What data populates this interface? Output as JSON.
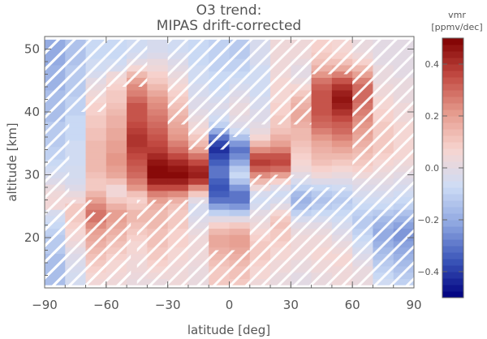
{
  "chart_data": {
    "type": "heatmap",
    "title": [
      "O3 trend:",
      "MIPAS drift-corrected"
    ],
    "xlabel": "latitude [deg]",
    "ylabel": "altitude [km]",
    "xlim": [
      -90,
      90
    ],
    "ylim": [
      12,
      52
    ],
    "x_ticks": [
      -90,
      -60,
      -30,
      0,
      30,
      60,
      90
    ],
    "y_ticks": [
      20,
      30,
      40,
      50
    ],
    "hatching": "white diagonal hatching over insignificant trend regions",
    "colorbar": {
      "title": [
        "vmr",
        "[ppmv/dec]"
      ],
      "range": [
        -0.5,
        0.5
      ],
      "ticks": [
        -0.4,
        -0.2,
        0.0,
        0.2,
        0.4
      ],
      "tick_labels": [
        "-0.4",
        "-0.2",
        "0.0",
        "0.2",
        "0.4"
      ],
      "colors": [
        "#00007f",
        "#3a55b8",
        "#8ea6e0",
        "#cddcf5",
        "#f7d5d0",
        "#e59a8c",
        "#c24a42",
        "#7f0000"
      ]
    },
    "lat_bands": [
      -85,
      -75,
      -65,
      -55,
      -45,
      -35,
      -25,
      -15,
      -5,
      5,
      15,
      25,
      35,
      45,
      55,
      65,
      75,
      85
    ],
    "alt_bands": [
      13,
      14,
      15,
      16,
      17,
      18,
      19,
      20,
      21,
      22,
      23,
      24,
      25,
      26,
      27,
      28,
      29,
      30,
      31,
      32,
      33,
      34,
      35,
      36,
      37,
      38,
      39,
      40,
      41,
      42,
      43,
      44,
      45,
      46,
      47,
      48,
      49,
      50,
      51
    ],
    "trend_by_lat": [
      [
        -0.15,
        -0.15,
        -0.15,
        -0.15,
        -0.15,
        -0.12,
        -0.12,
        -0.12,
        -0.1,
        -0.08,
        -0.06,
        -0.04,
        0.05,
        0.05,
        0.04,
        0.02,
        -0.02,
        -0.04,
        -0.06,
        -0.08,
        -0.1,
        -0.1,
        -0.12,
        -0.12,
        -0.12,
        -0.12,
        -0.15,
        -0.15,
        -0.15,
        -0.15,
        -0.15,
        -0.18,
        -0.18,
        -0.18,
        -0.18,
        -0.2,
        -0.2,
        -0.2,
        -0.2
      ],
      [
        -0.05,
        -0.05,
        -0.04,
        -0.03,
        -0.02,
        0.0,
        0.03,
        0.05,
        0.06,
        0.08,
        0.1,
        0.1,
        0.1,
        0.05,
        0.02,
        -0.02,
        -0.04,
        -0.05,
        -0.05,
        -0.06,
        -0.06,
        -0.06,
        -0.06,
        -0.08,
        -0.08,
        -0.08,
        -0.08,
        -0.1,
        -0.1,
        -0.1,
        -0.12,
        -0.12,
        -0.12,
        -0.12,
        -0.12,
        -0.14,
        -0.14,
        -0.14,
        -0.14
      ],
      [
        0.05,
        0.06,
        0.08,
        0.1,
        0.12,
        0.14,
        0.16,
        0.18,
        0.2,
        0.24,
        0.28,
        0.28,
        0.25,
        0.2,
        0.15,
        0.1,
        0.1,
        0.12,
        0.14,
        0.14,
        0.14,
        0.14,
        0.14,
        0.12,
        0.12,
        0.1,
        0.1,
        0.08,
        0.08,
        0.06,
        0.04,
        0.02,
        0.0,
        -0.04,
        -0.06,
        -0.06,
        -0.08,
        -0.08,
        -0.08
      ],
      [
        0.04,
        0.05,
        0.06,
        0.06,
        0.08,
        0.1,
        0.12,
        0.14,
        0.16,
        0.18,
        0.2,
        0.2,
        0.16,
        0.1,
        0.05,
        0.05,
        0.12,
        0.18,
        0.2,
        0.22,
        0.22,
        0.2,
        0.2,
        0.18,
        0.18,
        0.16,
        0.16,
        0.14,
        0.12,
        0.1,
        0.1,
        0.08,
        0.06,
        0.04,
        -0.04,
        -0.06,
        -0.08,
        -0.08,
        -0.08
      ],
      [
        0.02,
        0.03,
        0.04,
        0.04,
        0.05,
        0.06,
        0.06,
        0.08,
        0.1,
        0.12,
        0.14,
        0.14,
        0.1,
        0.08,
        0.12,
        0.22,
        0.26,
        0.3,
        0.32,
        0.34,
        0.36,
        0.38,
        0.4,
        0.4,
        0.38,
        0.36,
        0.34,
        0.34,
        0.34,
        0.3,
        0.26,
        0.24,
        0.2,
        0.14,
        0.06,
        0.0,
        -0.04,
        -0.06,
        -0.06
      ],
      [
        0.02,
        0.04,
        0.06,
        0.08,
        0.1,
        0.1,
        0.12,
        0.12,
        0.12,
        0.14,
        0.14,
        0.14,
        0.16,
        0.2,
        0.26,
        0.36,
        0.44,
        0.48,
        0.48,
        0.46,
        0.42,
        0.38,
        0.36,
        0.34,
        0.32,
        0.3,
        0.28,
        0.26,
        0.24,
        0.22,
        0.18,
        0.14,
        0.1,
        0.08,
        0.04,
        0.02,
        -0.02,
        -0.04,
        -0.04
      ],
      [
        0.04,
        0.04,
        0.04,
        0.05,
        0.06,
        0.06,
        0.08,
        0.08,
        0.08,
        0.1,
        0.1,
        0.1,
        0.12,
        0.16,
        0.24,
        0.36,
        0.44,
        0.48,
        0.46,
        0.42,
        0.36,
        0.3,
        0.26,
        0.22,
        0.2,
        0.18,
        0.16,
        0.14,
        0.12,
        0.1,
        0.08,
        0.06,
        0.04,
        0.02,
        0.0,
        -0.02,
        -0.04,
        -0.06,
        -0.06
      ],
      [
        0.02,
        0.02,
        0.02,
        0.03,
        0.04,
        0.04,
        0.04,
        0.04,
        0.02,
        0.0,
        -0.02,
        -0.04,
        -0.04,
        0.0,
        0.1,
        0.24,
        0.38,
        0.44,
        0.42,
        0.36,
        0.28,
        0.2,
        0.14,
        0.1,
        0.06,
        0.04,
        0.02,
        0.0,
        -0.02,
        -0.02,
        -0.04,
        -0.04,
        -0.06,
        -0.06,
        -0.06,
        -0.08,
        -0.08,
        -0.08,
        -0.08
      ],
      [
        0.1,
        0.1,
        0.1,
        0.12,
        0.14,
        0.16,
        0.18,
        0.18,
        0.14,
        0.08,
        0.0,
        -0.1,
        -0.22,
        -0.3,
        -0.34,
        -0.36,
        -0.34,
        -0.3,
        -0.3,
        -0.34,
        -0.38,
        -0.42,
        -0.38,
        -0.3,
        -0.2,
        -0.1,
        -0.06,
        -0.04,
        -0.02,
        -0.04,
        -0.06,
        -0.08,
        -0.08,
        -0.08,
        -0.1,
        -0.1,
        -0.1,
        -0.1,
        -0.1
      ],
      [
        0.1,
        0.12,
        0.12,
        0.14,
        0.16,
        0.18,
        0.2,
        0.2,
        0.16,
        0.1,
        0.0,
        -0.12,
        -0.24,
        -0.3,
        -0.3,
        -0.24,
        -0.14,
        -0.08,
        -0.12,
        -0.2,
        -0.26,
        -0.3,
        -0.24,
        -0.14,
        -0.06,
        -0.02,
        0.0,
        0.02,
        0.02,
        0.0,
        -0.02,
        -0.04,
        -0.06,
        -0.08,
        -0.1,
        -0.1,
        -0.12,
        -0.12,
        -0.12
      ],
      [
        0.04,
        0.06,
        0.06,
        0.08,
        0.1,
        0.1,
        0.1,
        0.08,
        0.06,
        0.04,
        0.02,
        0.0,
        -0.04,
        -0.06,
        -0.04,
        0.04,
        0.14,
        0.24,
        0.32,
        0.38,
        0.34,
        0.24,
        0.14,
        0.06,
        0.02,
        0.0,
        -0.02,
        -0.02,
        -0.04,
        -0.04,
        -0.06,
        -0.06,
        -0.06,
        -0.06,
        -0.06,
        -0.04,
        -0.04,
        -0.04,
        -0.04
      ],
      [
        0.02,
        0.02,
        0.04,
        0.04,
        0.06,
        0.06,
        0.08,
        0.1,
        0.1,
        0.12,
        0.1,
        0.06,
        0.0,
        -0.04,
        -0.06,
        -0.02,
        0.08,
        0.2,
        0.3,
        0.36,
        0.34,
        0.26,
        0.2,
        0.16,
        0.12,
        0.1,
        0.1,
        0.08,
        0.08,
        0.06,
        0.06,
        0.06,
        0.06,
        0.04,
        0.04,
        0.04,
        0.04,
        0.04,
        0.04
      ],
      [
        0.0,
        0.0,
        0.02,
        0.02,
        0.04,
        0.04,
        0.04,
        0.04,
        0.02,
        0.0,
        -0.04,
        -0.1,
        -0.16,
        -0.18,
        -0.16,
        -0.1,
        -0.04,
        0.0,
        0.04,
        0.06,
        0.08,
        0.1,
        0.12,
        0.14,
        0.14,
        0.16,
        0.18,
        0.18,
        0.16,
        0.14,
        0.1,
        0.06,
        0.02,
        0.0,
        0.0,
        0.02,
        0.04,
        0.04,
        0.04
      ],
      [
        0.02,
        0.02,
        0.04,
        0.04,
        0.06,
        0.06,
        0.04,
        0.04,
        0.02,
        0.0,
        -0.04,
        -0.08,
        -0.12,
        -0.14,
        -0.12,
        -0.08,
        -0.02,
        0.04,
        0.08,
        0.12,
        0.14,
        0.16,
        0.18,
        0.22,
        0.26,
        0.3,
        0.32,
        0.34,
        0.34,
        0.34,
        0.34,
        0.32,
        0.28,
        0.22,
        0.16,
        0.12,
        0.1,
        0.08,
        0.08
      ],
      [
        0.04,
        0.04,
        0.04,
        0.06,
        0.06,
        0.04,
        0.02,
        0.0,
        -0.02,
        -0.04,
        -0.06,
        -0.08,
        -0.1,
        -0.12,
        -0.1,
        -0.06,
        -0.02,
        0.02,
        0.06,
        0.1,
        0.14,
        0.18,
        0.22,
        0.26,
        0.3,
        0.32,
        0.36,
        0.4,
        0.44,
        0.46,
        0.44,
        0.4,
        0.34,
        0.26,
        0.18,
        0.12,
        0.08,
        0.06,
        0.06
      ],
      [
        0.02,
        0.02,
        0.02,
        0.0,
        -0.02,
        -0.04,
        -0.06,
        -0.08,
        -0.1,
        -0.12,
        -0.12,
        -0.1,
        -0.08,
        -0.06,
        -0.04,
        -0.02,
        0.0,
        0.04,
        0.08,
        0.1,
        0.12,
        0.14,
        0.16,
        0.18,
        0.2,
        0.22,
        0.24,
        0.26,
        0.28,
        0.3,
        0.3,
        0.3,
        0.26,
        0.2,
        0.14,
        0.08,
        0.04,
        0.02,
        0.02
      ],
      [
        -0.06,
        -0.08,
        -0.1,
        -0.12,
        -0.14,
        -0.16,
        -0.18,
        -0.2,
        -0.2,
        -0.18,
        -0.16,
        -0.12,
        -0.08,
        -0.06,
        -0.04,
        -0.02,
        0.0,
        0.02,
        0.04,
        0.06,
        0.08,
        0.1,
        0.1,
        0.1,
        0.1,
        0.1,
        0.08,
        0.08,
        0.06,
        0.06,
        0.04,
        0.04,
        0.02,
        0.02,
        0.02,
        0.0,
        0.0,
        0.0,
        0.0
      ],
      [
        -0.1,
        -0.12,
        -0.14,
        -0.16,
        -0.18,
        -0.2,
        -0.22,
        -0.24,
        -0.24,
        -0.22,
        -0.18,
        -0.14,
        -0.1,
        -0.08,
        -0.06,
        -0.04,
        -0.02,
        0.0,
        0.02,
        0.04,
        0.06,
        0.06,
        0.06,
        0.06,
        0.06,
        0.06,
        0.04,
        0.04,
        0.04,
        0.02,
        0.02,
        0.02,
        0.02,
        0.0,
        0.0,
        0.0,
        0.0,
        0.0,
        0.0
      ]
    ],
    "insignificant_rects": [
      {
        "lat": [
          -90,
          -78
        ],
        "alt": [
          12,
          52
        ]
      },
      {
        "lat": [
          -90,
          -60
        ],
        "alt": [
          40,
          52
        ]
      },
      {
        "lat": [
          -90,
          -48
        ],
        "alt": [
          12,
          24
        ]
      },
      {
        "lat": [
          -78,
          -66
        ],
        "alt": [
          24,
          26
        ]
      },
      {
        "lat": [
          -68,
          -48
        ],
        "alt": [
          12,
          16
        ]
      },
      {
        "lat": [
          -60,
          -40
        ],
        "alt": [
          44,
          52
        ]
      },
      {
        "lat": [
          -45,
          -10
        ],
        "alt": [
          12,
          26
        ]
      },
      {
        "lat": [
          -30,
          0
        ],
        "alt": [
          38,
          52
        ]
      },
      {
        "lat": [
          -20,
          0
        ],
        "alt": [
          34,
          38
        ]
      },
      {
        "lat": [
          -10,
          10
        ],
        "alt": [
          12,
          18
        ]
      },
      {
        "lat": [
          -10,
          10
        ],
        "alt": [
          36,
          52
        ]
      },
      {
        "lat": [
          10,
          40
        ],
        "alt": [
          12,
          30
        ]
      },
      {
        "lat": [
          10,
          40
        ],
        "alt": [
          38,
          52
        ]
      },
      {
        "lat": [
          40,
          90
        ],
        "alt": [
          12,
          28
        ]
      },
      {
        "lat": [
          60,
          90
        ],
        "alt": [
          28,
          52
        ]
      },
      {
        "lat": [
          35,
          70
        ],
        "alt": [
          46,
          52
        ]
      }
    ]
  }
}
